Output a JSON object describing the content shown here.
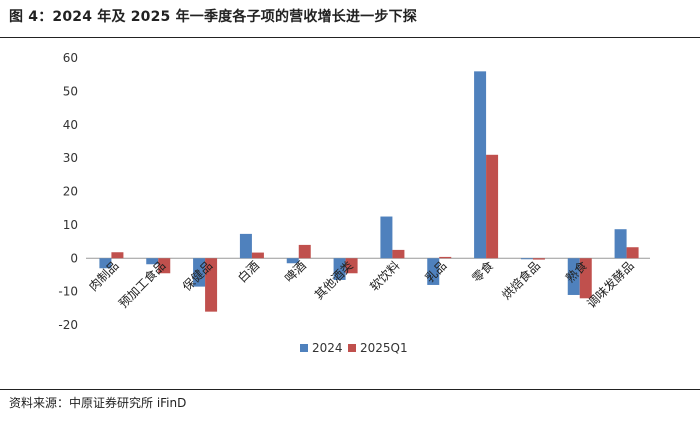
{
  "figure": {
    "title": "图 4：2024 年及 2025 年一季度各子项的营收增长进一步下探",
    "source": "资料来源：中原证券研究所 iFinD"
  },
  "colors": {
    "series_2024": "#4f81bd",
    "series_2025Q1": "#c0504d",
    "axis": "#999999",
    "grid": "#d9d9d9"
  },
  "chart_data": {
    "type": "bar",
    "title": "",
    "xlabel": "",
    "ylabel": "",
    "ylim": [
      -20,
      60
    ],
    "yticks": [
      -20,
      -10,
      0,
      10,
      20,
      30,
      40,
      50,
      60
    ],
    "grid": false,
    "legend_position": "bottom",
    "categories": [
      "肉制品",
      "预加工食品",
      "保健品",
      "白酒",
      "啤酒",
      "其他酒类",
      "软饮料",
      "乳品",
      "零食",
      "烘焙食品",
      "熟食",
      "调味发酵品"
    ],
    "series": [
      {
        "name": "2024",
        "values": [
          -3,
          -1.8,
          -8.5,
          7.3,
          -1.5,
          -6.5,
          12.5,
          -8,
          56,
          -0.3,
          -11,
          8.7
        ]
      },
      {
        "name": "2025Q1",
        "values": [
          1.8,
          -4.5,
          -16,
          1.7,
          4,
          -4.5,
          2.5,
          0.4,
          31,
          -0.4,
          -12,
          3.3
        ]
      }
    ]
  }
}
